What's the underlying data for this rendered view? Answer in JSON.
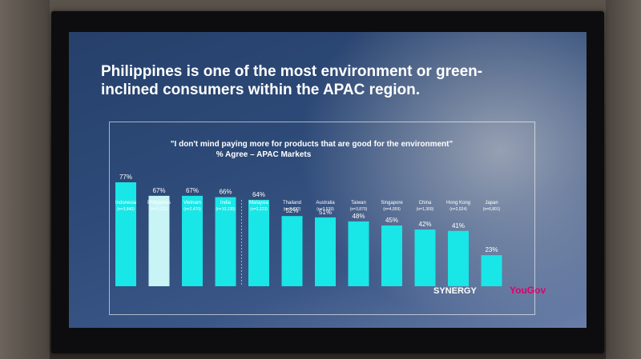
{
  "slide": {
    "headline": "Philippines is one of the most environment or green-inclined consumers within the APAC region.",
    "quote": "\"I don't mind paying more for products that are good for the environment\"",
    "subtitle": "% Agree – APAC Markets",
    "logo_synergy": "SYNERGY",
    "logo_yougov": "YouGov"
  },
  "colors": {
    "bar": "#19e6e6",
    "highlight_bar": "#c8f4f6",
    "screen_bg": "#2d4a78"
  },
  "chart_data": {
    "type": "bar",
    "title": "\"I don't mind paying more for products that are good for the environment\"",
    "subtitle": "% Agree – APAC Markets",
    "categories": [
      "Indonesia",
      "Philippines",
      "Vietnam",
      "India",
      "Malaysia",
      "Thailand",
      "Australia",
      "Taiwan",
      "Singapore",
      "China",
      "Hong Kong",
      "Japan"
    ],
    "sample_sizes": [
      "(n=3,840)",
      "(n=2,037)",
      "(n=2,470)",
      "(n=10,135)",
      "(n=3,223)",
      "(n=2,732)",
      "(n=3,539)",
      "(n=3,870)",
      "(n=4,059)",
      "(n=1,309)",
      "(n=2,024)",
      "(n=6,801)"
    ],
    "values": [
      77,
      67,
      67,
      66,
      64,
      52,
      51,
      48,
      45,
      42,
      41,
      23
    ],
    "value_labels": [
      "77%",
      "67%",
      "67%",
      "66%",
      "64%",
      "52%",
      "51%",
      "48%",
      "45%",
      "42%",
      "41%",
      "23%"
    ],
    "highlight": "Philippines",
    "ylim": [
      0,
      100
    ],
    "grid": false
  }
}
